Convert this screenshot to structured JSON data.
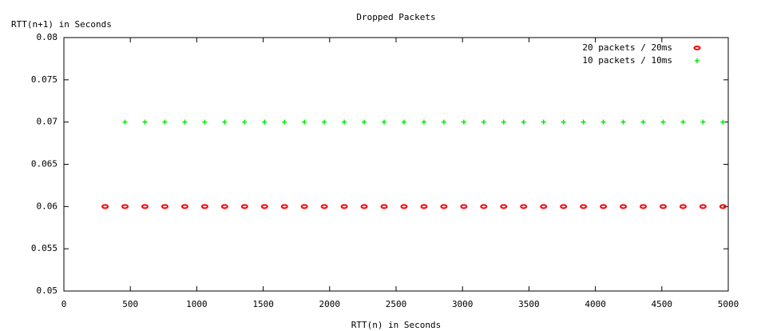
{
  "chart_data": {
    "type": "scatter",
    "title": "Dropped Packets",
    "x_label": "RTT(n) in Seconds",
    "y_label": "RTT(n+1) in Seconds",
    "xlim": [
      0,
      5000
    ],
    "xticks": [
      0,
      500,
      1000,
      1500,
      2000,
      2500,
      3000,
      3500,
      4000,
      4500,
      5000
    ],
    "ylim": [
      0.05,
      0.08
    ],
    "yticks": [
      0.05,
      0.055,
      0.06,
      0.065,
      0.07,
      0.075,
      0.08
    ],
    "legend": "top-right",
    "series": [
      {
        "name": "20 packets / 20ms",
        "color": "#ff0000",
        "marker": "ellipse",
        "x": [
          310,
          460,
          610,
          760,
          910,
          1060,
          1210,
          1360,
          1510,
          1660,
          1810,
          1960,
          2110,
          2260,
          2410,
          2560,
          2710,
          2860,
          3010,
          3160,
          3310,
          3460,
          3610,
          3760,
          3910,
          4060,
          4210,
          4360,
          4510,
          4660,
          4810,
          4960
        ],
        "values": [
          0.06,
          0.06,
          0.06,
          0.06,
          0.06,
          0.06,
          0.06,
          0.06,
          0.06,
          0.06,
          0.06,
          0.06,
          0.06,
          0.06,
          0.06,
          0.06,
          0.06,
          0.06,
          0.06,
          0.06,
          0.06,
          0.06,
          0.06,
          0.06,
          0.06,
          0.06,
          0.06,
          0.06,
          0.06,
          0.06,
          0.06,
          0.06
        ]
      },
      {
        "name": "10 packets / 10ms",
        "color": "#00ee00",
        "marker": "plus",
        "x": [
          460,
          610,
          760,
          910,
          1060,
          1210,
          1360,
          1510,
          1660,
          1810,
          1960,
          2110,
          2260,
          2410,
          2560,
          2710,
          2860,
          3010,
          3160,
          3310,
          3460,
          3610,
          3760,
          3910,
          4060,
          4210,
          4360,
          4510,
          4660,
          4810,
          4960
        ],
        "values": [
          0.07,
          0.07,
          0.07,
          0.07,
          0.07,
          0.07,
          0.07,
          0.07,
          0.07,
          0.07,
          0.07,
          0.07,
          0.07,
          0.07,
          0.07,
          0.07,
          0.07,
          0.07,
          0.07,
          0.07,
          0.07,
          0.07,
          0.07,
          0.07,
          0.07,
          0.07,
          0.07,
          0.07,
          0.07,
          0.07,
          0.07
        ]
      }
    ]
  }
}
